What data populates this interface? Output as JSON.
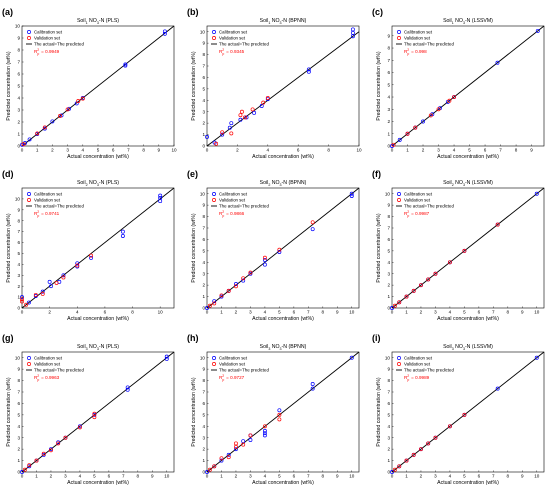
{
  "figure": {
    "x_label": "Actual concentration (wt%)",
    "y_label": "Predicted concentration (wt%)",
    "legend": {
      "calibration": "Calibration set",
      "validation": "Validation set",
      "line": "The actual=The predicted"
    },
    "colors": {
      "calibration": "#0000ff",
      "validation": "#ff0000",
      "line": "#000000",
      "r2_text": "#ff0000"
    }
  },
  "chart_data": [
    {
      "type": "scatter",
      "panel": "(a)",
      "title": "Soil1 NO3-N (PLS)",
      "title_parts": {
        "pre": "Soil",
        "sub1": "1",
        "mid": " NO",
        "sub2": "3",
        "post": "-N (PLS)"
      },
      "r2_label": "R",
      "r2_sub": "p",
      "r2_sup": "2",
      "r2_value": "= 0.9949",
      "xlim": [
        0,
        10
      ],
      "ylim": [
        0,
        10
      ],
      "x_ticks": [
        0,
        1,
        2,
        3,
        4,
        5,
        6,
        7,
        8,
        9,
        10
      ],
      "y_ticks": [
        0,
        1,
        2,
        3,
        4,
        5,
        6,
        7,
        8,
        9,
        10
      ],
      "calibration": [
        [
          0,
          0.1
        ],
        [
          0.2,
          0.25
        ],
        [
          0.5,
          0.55
        ],
        [
          1,
          1
        ],
        [
          1.5,
          1.45
        ],
        [
          2,
          2.05
        ],
        [
          2.6,
          2.55
        ],
        [
          3.1,
          3.1
        ],
        [
          3.6,
          3.55
        ],
        [
          4,
          4
        ],
        [
          6.8,
          6.7
        ],
        [
          6.8,
          6.8
        ],
        [
          9.4,
          9.35
        ],
        [
          9.4,
          9.55
        ]
      ],
      "validation": [
        [
          0.1,
          0.15
        ],
        [
          1,
          1.05
        ],
        [
          1.5,
          1.55
        ],
        [
          2.5,
          2.5
        ],
        [
          3,
          3.05
        ],
        [
          3.7,
          3.75
        ],
        [
          4,
          3.95
        ]
      ]
    },
    {
      "type": "scatter",
      "panel": "(b)",
      "title": "Soil1 NO3-N (BPNN)",
      "title_parts": {
        "pre": "Soil",
        "sub1": "1",
        "mid": " NO",
        "sub2": "3",
        "post": "-N (BPNN)"
      },
      "r2_label": "R",
      "r2_sub": "p",
      "r2_sup": "2",
      "r2_value": "= 0.9345",
      "xlim": [
        0,
        10
      ],
      "ylim": [
        0,
        10.5
      ],
      "x_ticks": [
        0,
        2,
        4,
        6,
        8,
        10
      ],
      "y_ticks": [
        0,
        1,
        2,
        3,
        4,
        5,
        6,
        7,
        8,
        9,
        10
      ],
      "calibration": [
        [
          0,
          0.8
        ],
        [
          0.5,
          0.3
        ],
        [
          1,
          1
        ],
        [
          1.5,
          1.6
        ],
        [
          1.6,
          2
        ],
        [
          2.2,
          2.3
        ],
        [
          2.6,
          2.5
        ],
        [
          3.1,
          2.9
        ],
        [
          3.6,
          3.5
        ],
        [
          4,
          4.1
        ],
        [
          6.7,
          6.5
        ],
        [
          6.7,
          6.7
        ],
        [
          9.6,
          9.6
        ],
        [
          9.6,
          9.9
        ],
        [
          9.6,
          10.2
        ]
      ],
      "validation": [
        [
          0.6,
          0.2
        ],
        [
          1,
          1.2
        ],
        [
          1.6,
          1.1
        ],
        [
          2.2,
          2.7
        ],
        [
          2.3,
          3
        ],
        [
          2.5,
          2.5
        ],
        [
          3,
          3.2
        ],
        [
          3.7,
          3.8
        ],
        [
          4,
          4.2
        ]
      ]
    },
    {
      "type": "scatter",
      "panel": "(c)",
      "title": "Soil1 NO3-N (LSSVM)",
      "title_parts": {
        "pre": "Soil",
        "sub1": "1",
        "mid": " NO",
        "sub2": "3",
        "post": "-N (LSSVM)"
      },
      "r2_label": "R",
      "r2_sub": "p",
      "r2_sup": "2",
      "r2_value": "= 0.998",
      "xlim": [
        0,
        9.8
      ],
      "ylim": [
        0,
        9.8
      ],
      "x_ticks": [
        0,
        1,
        2,
        3,
        4,
        5,
        6,
        7,
        8,
        9
      ],
      "y_ticks": [
        0,
        1,
        2,
        3,
        4,
        5,
        6,
        7,
        8,
        9
      ],
      "calibration": [
        [
          0,
          0
        ],
        [
          0.5,
          0.5
        ],
        [
          1,
          1
        ],
        [
          1.5,
          1.5
        ],
        [
          2,
          2
        ],
        [
          2.6,
          2.6
        ],
        [
          3.1,
          3.1
        ],
        [
          3.6,
          3.6
        ],
        [
          4,
          4
        ],
        [
          6.8,
          6.8
        ],
        [
          9.4,
          9.4
        ]
      ],
      "validation": [
        [
          0.1,
          0.1
        ],
        [
          1,
          1
        ],
        [
          1.5,
          1.5
        ],
        [
          2.5,
          2.5
        ],
        [
          3,
          3
        ],
        [
          3.7,
          3.7
        ],
        [
          4,
          4
        ]
      ]
    },
    {
      "type": "scatter",
      "panel": "(d)",
      "title": "Soil2 NO3-N (PLS)",
      "title_parts": {
        "pre": "Soil",
        "sub1": "2",
        "mid": " NO",
        "sub2": "3",
        "post": "-N (PLS)"
      },
      "r2_label": "R",
      "r2_sub": "p",
      "r2_sup": "2",
      "r2_value": "= 0.9741",
      "xlim": [
        0,
        11
      ],
      "ylim": [
        0,
        11
      ],
      "x_ticks": [
        0,
        2,
        4,
        6,
        8,
        10
      ],
      "y_ticks": [
        0,
        1,
        2,
        3,
        4,
        5,
        6,
        7,
        8,
        9,
        10
      ],
      "calibration": [
        [
          0,
          1
        ],
        [
          0.5,
          0.5
        ],
        [
          1,
          1.1
        ],
        [
          1.5,
          1.5
        ],
        [
          2,
          2.4
        ],
        [
          2.1,
          2
        ],
        [
          2.7,
          2.4
        ],
        [
          3,
          3
        ],
        [
          4,
          3.8
        ],
        [
          4,
          4.1
        ],
        [
          5,
          4.6
        ],
        [
          7.3,
          6.6
        ],
        [
          7.3,
          7
        ],
        [
          10,
          9.8
        ],
        [
          10,
          10.1
        ],
        [
          10,
          10.3
        ]
      ],
      "validation": [
        [
          0,
          0.8
        ],
        [
          0,
          0.6
        ],
        [
          0.3,
          0.3
        ],
        [
          1,
          1.2
        ],
        [
          1.5,
          1.3
        ],
        [
          2.5,
          2.3
        ],
        [
          3,
          2.8
        ],
        [
          4,
          3.9
        ],
        [
          5,
          4.8
        ]
      ]
    },
    {
      "type": "scatter",
      "panel": "(e)",
      "title": "Soil2 NO3-N (BPNN)",
      "title_parts": {
        "pre": "Soil",
        "sub1": "2",
        "mid": " NO",
        "sub2": "3",
        "post": "-N (BPNN)"
      },
      "r2_label": "R",
      "r2_sub": "p",
      "r2_sup": "2",
      "r2_value": "= 0.9866",
      "xlim": [
        0,
        10.5
      ],
      "ylim": [
        0,
        10.5
      ],
      "x_ticks": [
        0,
        1,
        2,
        3,
        4,
        5,
        6,
        7,
        8,
        9,
        10
      ],
      "y_ticks": [
        0,
        1,
        2,
        3,
        4,
        5,
        6,
        7,
        8,
        9,
        10
      ],
      "calibration": [
        [
          0,
          0
        ],
        [
          0.5,
          0.6
        ],
        [
          1,
          1
        ],
        [
          1.5,
          1.5
        ],
        [
          2,
          2.1
        ],
        [
          2.5,
          2.4
        ],
        [
          3,
          3
        ],
        [
          4,
          4.2
        ],
        [
          4,
          3.8
        ],
        [
          5,
          4.9
        ],
        [
          7.3,
          6.9
        ],
        [
          10,
          10
        ],
        [
          10,
          9.8
        ]
      ],
      "validation": [
        [
          0.2,
          0.2
        ],
        [
          0.5,
          0.4
        ],
        [
          1,
          1.1
        ],
        [
          1.5,
          1.5
        ],
        [
          2,
          1.9
        ],
        [
          2.5,
          2.6
        ],
        [
          3,
          3.1
        ],
        [
          4,
          4.4
        ],
        [
          5,
          5.1
        ],
        [
          7.3,
          7.5
        ]
      ]
    },
    {
      "type": "scatter",
      "panel": "(f)",
      "title": "Soil2 NO3-N (LSSVM)",
      "title_parts": {
        "pre": "Soil",
        "sub1": "2",
        "mid": " NO",
        "sub2": "3",
        "post": "-N (LSSVM)"
      },
      "r2_label": "R",
      "r2_sub": "p",
      "r2_sup": "2",
      "r2_value": "= 0.9987",
      "xlim": [
        0,
        10.5
      ],
      "ylim": [
        0,
        10.5
      ],
      "x_ticks": [
        0,
        1,
        2,
        3,
        4,
        5,
        6,
        7,
        8,
        9,
        10
      ],
      "y_ticks": [
        0,
        1,
        2,
        3,
        4,
        5,
        6,
        7,
        8,
        9,
        10
      ],
      "calibration": [
        [
          0,
          0
        ],
        [
          0.5,
          0.5
        ],
        [
          1,
          1
        ],
        [
          1.5,
          1.5
        ],
        [
          2,
          2
        ],
        [
          2.5,
          2.5
        ],
        [
          3,
          3
        ],
        [
          4,
          4
        ],
        [
          5,
          5
        ],
        [
          7.3,
          7.3
        ],
        [
          10,
          10
        ]
      ],
      "validation": [
        [
          0.2,
          0.2
        ],
        [
          0.5,
          0.5
        ],
        [
          1,
          1
        ],
        [
          1.5,
          1.5
        ],
        [
          2,
          2
        ],
        [
          2.5,
          2.5
        ],
        [
          3,
          3
        ],
        [
          4,
          4
        ],
        [
          5,
          5
        ],
        [
          7.3,
          7.3
        ]
      ]
    },
    {
      "type": "scatter",
      "panel": "(g)",
      "title": "Soil3 NO3-N (PLS)",
      "title_parts": {
        "pre": "Soil",
        "sub1": "3",
        "mid": " NO",
        "sub2": "3",
        "post": "-N (PLS)"
      },
      "r2_label": "R",
      "r2_sub": "p",
      "r2_sup": "2",
      "r2_value": "= 0.9963",
      "xlim": [
        0,
        10.5
      ],
      "ylim": [
        0,
        10.5
      ],
      "x_ticks": [
        0,
        1,
        2,
        3,
        4,
        5,
        6,
        7,
        8,
        9,
        10
      ],
      "y_ticks": [
        0,
        1,
        2,
        3,
        4,
        5,
        6,
        7,
        8,
        9,
        10
      ],
      "calibration": [
        [
          0,
          0
        ],
        [
          0.5,
          0.5
        ],
        [
          1,
          1
        ],
        [
          1.5,
          1.5
        ],
        [
          2,
          2
        ],
        [
          2.5,
          2.6
        ],
        [
          3,
          3
        ],
        [
          4,
          4
        ],
        [
          5,
          5
        ],
        [
          7.3,
          7.2
        ],
        [
          7.3,
          7.4
        ],
        [
          10,
          9.9
        ],
        [
          10,
          10.1
        ]
      ],
      "validation": [
        [
          0.2,
          0.2
        ],
        [
          0.5,
          0.6
        ],
        [
          1,
          1
        ],
        [
          1.5,
          1.6
        ],
        [
          2,
          1.9
        ],
        [
          2.5,
          2.5
        ],
        [
          3,
          3
        ],
        [
          4,
          3.9
        ],
        [
          5,
          5.1
        ],
        [
          5,
          4.8
        ]
      ]
    },
    {
      "type": "scatter",
      "panel": "(h)",
      "title": "Soil3 NO3-N (BPNN)",
      "title_parts": {
        "pre": "Soil",
        "sub1": "3",
        "mid": " NO",
        "sub2": "3",
        "post": "-N (BPNN)"
      },
      "r2_label": "R",
      "r2_sub": "p",
      "r2_sup": "2",
      "r2_value": "= 0.9727",
      "xlim": [
        0,
        10.5
      ],
      "ylim": [
        0,
        10.5
      ],
      "x_ticks": [
        0,
        1,
        2,
        3,
        4,
        5,
        6,
        7,
        8,
        9,
        10
      ],
      "y_ticks": [
        0,
        1,
        2,
        3,
        4,
        5,
        6,
        7,
        8,
        9,
        10
      ],
      "calibration": [
        [
          0,
          0
        ],
        [
          0.5,
          0.5
        ],
        [
          1,
          1
        ],
        [
          1.5,
          1.5
        ],
        [
          2,
          2
        ],
        [
          2.5,
          2.7
        ],
        [
          3,
          3.2
        ],
        [
          3,
          2.8
        ],
        [
          4,
          3.4
        ],
        [
          4,
          3.6
        ],
        [
          4,
          3.2
        ],
        [
          5,
          5.4
        ],
        [
          7.3,
          7.3
        ],
        [
          7.3,
          7.7
        ],
        [
          10,
          10
        ]
      ],
      "validation": [
        [
          0.2,
          0.2
        ],
        [
          0.5,
          0.5
        ],
        [
          1,
          1.2
        ],
        [
          1.5,
          1.3
        ],
        [
          2,
          2.5
        ],
        [
          2,
          2.2
        ],
        [
          2.5,
          2.4
        ],
        [
          3,
          3.2
        ],
        [
          4,
          4
        ],
        [
          5,
          4.6
        ],
        [
          5,
          5
        ]
      ]
    },
    {
      "type": "scatter",
      "panel": "(i)",
      "title": "Soil3 NO3-N (LSSVM)",
      "title_parts": {
        "pre": "Soil",
        "sub1": "3",
        "mid": " NO",
        "sub2": "3",
        "post": "-N (LSSVM)"
      },
      "r2_label": "R",
      "r2_sub": "p",
      "r2_sup": "2",
      "r2_value": "= 0.9989",
      "xlim": [
        0,
        10.5
      ],
      "ylim": [
        0,
        10.5
      ],
      "x_ticks": [
        0,
        1,
        2,
        3,
        4,
        5,
        6,
        7,
        8,
        9,
        10
      ],
      "y_ticks": [
        0,
        1,
        2,
        3,
        4,
        5,
        6,
        7,
        8,
        9,
        10
      ],
      "calibration": [
        [
          0,
          0
        ],
        [
          0.5,
          0.5
        ],
        [
          1,
          1
        ],
        [
          1.5,
          1.5
        ],
        [
          2,
          2
        ],
        [
          2.5,
          2.5
        ],
        [
          3,
          3
        ],
        [
          4,
          4
        ],
        [
          5,
          5
        ],
        [
          7.3,
          7.3
        ],
        [
          10,
          10
        ]
      ],
      "validation": [
        [
          0.2,
          0.2
        ],
        [
          0.5,
          0.5
        ],
        [
          1,
          1
        ],
        [
          1.5,
          1.5
        ],
        [
          2,
          2
        ],
        [
          2.5,
          2.5
        ],
        [
          3,
          3
        ],
        [
          4,
          4
        ],
        [
          5,
          5
        ]
      ]
    }
  ]
}
